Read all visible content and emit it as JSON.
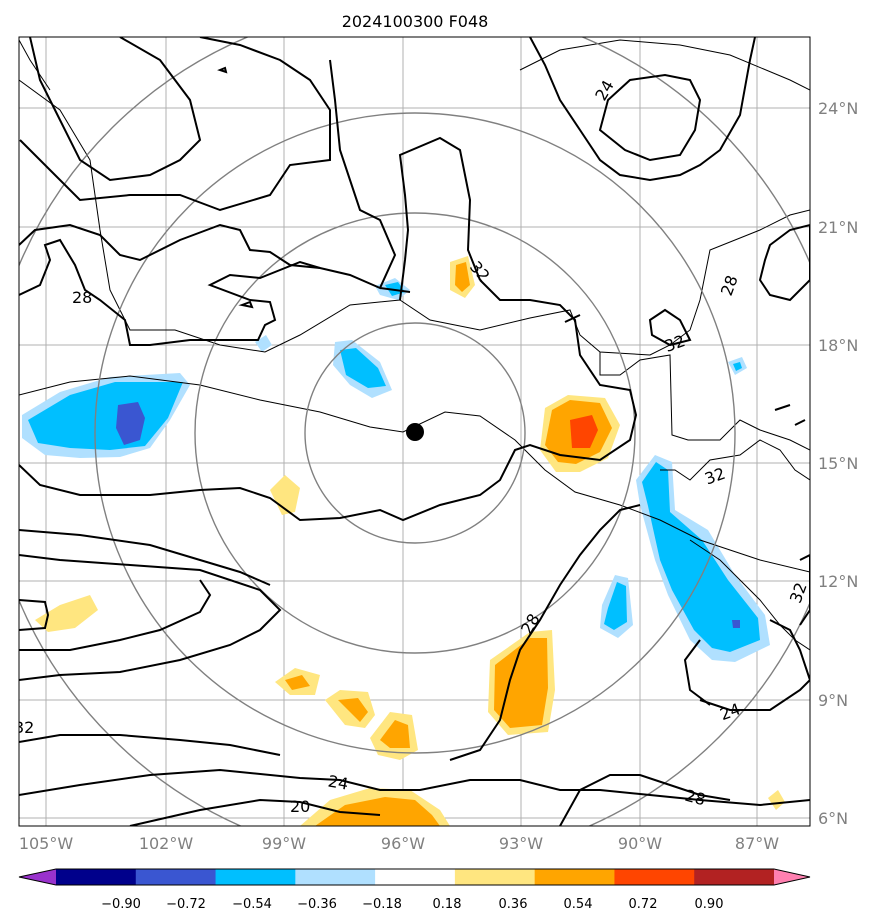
{
  "title": "2024100300 F048",
  "lon_labels": [
    "105°W",
    "102°W",
    "99°W",
    "96°W",
    "93°W",
    "90°W",
    "87°W"
  ],
  "lat_labels": [
    "24°N",
    "21°N",
    "18°N",
    "15°N",
    "12°N",
    "9°N",
    "6°N"
  ],
  "colorbar": {
    "ticks": [
      "−0.90",
      "−0.72",
      "−0.54",
      "−0.36",
      "−0.18",
      "0.18",
      "0.36",
      "0.54",
      "0.72",
      "0.90"
    ],
    "colors": [
      "#9932cc",
      "#00008b",
      "#3a56d1",
      "#00bfff",
      "#b0e0ff",
      "#ffffff",
      "#ffe680",
      "#ffa500",
      "#ff4500",
      "#b22222",
      "#ff80b0"
    ]
  },
  "contour_labels": [
    "24",
    "28",
    "32",
    "32",
    "32",
    "32",
    "28",
    "24",
    "20",
    "24",
    "28",
    "32",
    "28"
  ],
  "center_marker": {
    "lon": -95.8,
    "lat": 15.8
  },
  "range_rings_deg": [
    3,
    6,
    9,
    12
  ]
}
